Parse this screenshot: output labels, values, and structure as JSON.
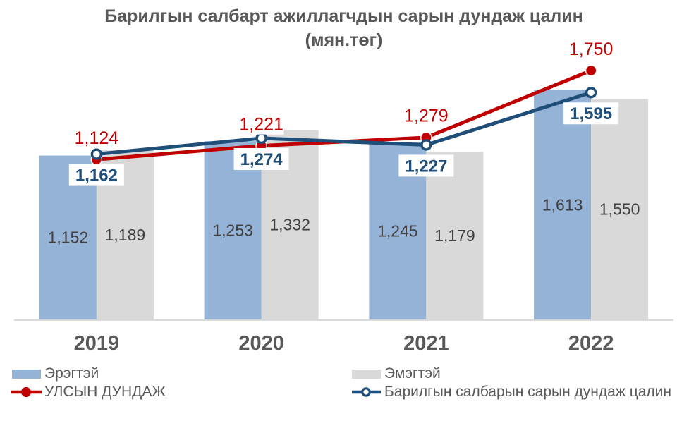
{
  "title": {
    "line1": "Барилгын салбарт ажиллагчдын сарын дундаж цалин",
    "line2": "(мян.төг)"
  },
  "chart_data": {
    "type": "bar",
    "subtype": "grouped-bars-with-lines",
    "title": "Барилгын салбарт ажиллагчдын сарын дундаж цалин (мян.төг)",
    "categories": [
      "2019",
      "2020",
      "2021",
      "2022"
    ],
    "series": [
      {
        "name": "Эрэгтэй",
        "type": "bar",
        "color": "#95B3D7",
        "values": [
          1152,
          1253,
          1245,
          1613
        ]
      },
      {
        "name": "Эмэгтэй",
        "type": "bar",
        "color": "#D9D9D9",
        "values": [
          1189,
          1332,
          1179,
          1550
        ]
      },
      {
        "name": "УЛСЫН ДУНДАЖ",
        "type": "line",
        "color": "#C00000",
        "marker": "filled-circle",
        "label_color": "#C00000",
        "values": [
          1124,
          1221,
          1279,
          1750
        ]
      },
      {
        "name": "Барилгын салбарын сарын дундаж цалин",
        "type": "line",
        "color": "#1F4E79",
        "marker": "open-circle",
        "label_color": "#1F4E79",
        "values": [
          1162,
          1274,
          1227,
          1595
        ]
      }
    ],
    "xlabel": "",
    "ylabel": "",
    "ylim": [
      0,
      1986
    ],
    "grid": false,
    "y_axis_visible": false,
    "legend_position": "bottom",
    "axis_line_color": "#D6D6D6",
    "axis_label_color": "#595959",
    "bar_label_color": "#404040",
    "number_format": "#,##0"
  }
}
